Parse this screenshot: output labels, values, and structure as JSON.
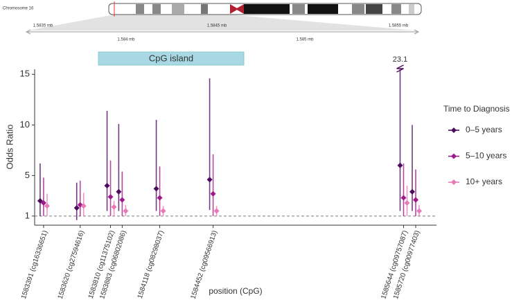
{
  "chart_data": {
    "type": "errorbar",
    "chromosome_label": "Chromosome 16",
    "genome_ticks_top": [
      "1.5835 mb",
      "1.5845 mb",
      "1.5855 mb"
    ],
    "genome_ticks_bottom": [
      "1.584 mb",
      "1.585 mb"
    ],
    "annotation": "CpG island",
    "xlabel": "position (CpG)",
    "ylabel": "Odds Ratio",
    "legend_title": "Time to Diagnosis",
    "xlim": [
      1583335,
      1585850
    ],
    "xticks": [
      {
        "value": 1583391,
        "label": "1583391 (cg16336651)"
      },
      {
        "value": 1583620,
        "label": "1583620 (cg27594616)"
      },
      {
        "value": 1583810,
        "label": "1583810 (cg11375102)"
      },
      {
        "value": 1583883,
        "label": "1583883 (cg06802086)"
      },
      {
        "value": 1584118,
        "label": "1584118 (cg08298037)"
      },
      {
        "value": 1584452,
        "label": "1584452 (cg09566913)"
      },
      {
        "value": 1585644,
        "label": "1585644 (cg09757087)"
      },
      {
        "value": 1585720,
        "label": "1585720 (cg00977403)"
      }
    ],
    "x": [
      1583391,
      1583620,
      1583810,
      1583883,
      1584118,
      1584452,
      1585644,
      1585720
    ],
    "ylim": [
      0.1,
      15.5
    ],
    "yticks": [
      1,
      5,
      10,
      15
    ],
    "hline": 1,
    "series": [
      {
        "name": "0–5 years",
        "color": "#4b0c5e",
        "values": [
          2.5,
          1.8,
          4.0,
          3.4,
          3.7,
          4.6,
          6.0,
          3.4
        ],
        "lower": [
          1.0,
          0.6,
          1.5,
          1.5,
          1.5,
          1.6,
          1.5,
          1.5
        ],
        "upper": [
          6.2,
          4.3,
          11.4,
          10.1,
          10.5,
          14.6,
          23.1,
          10.0
        ]
      },
      {
        "name": "5–10 years",
        "color": "#a0198a",
        "values": [
          2.3,
          2.1,
          2.9,
          2.6,
          2.8,
          3.2,
          2.8,
          2.6
        ],
        "lower": [
          1.0,
          1.0,
          1.0,
          1.0,
          1.0,
          1.0,
          1.0,
          1.0
        ],
        "upper": [
          4.8,
          4.5,
          6.5,
          5.4,
          5.9,
          7.1,
          6.2,
          5.6
        ]
      },
      {
        "name": "10+ years",
        "color": "#e87ab8",
        "values": [
          2.0,
          2.0,
          1.9,
          1.5,
          1.5,
          1.5,
          2.3,
          1.5
        ],
        "lower": [
          1.0,
          1.0,
          1.0,
          1.0,
          1.0,
          1.0,
          1.0,
          1.0
        ],
        "upper": [
          3.2,
          3.3,
          2.5,
          2.1,
          2.0,
          2.0,
          4.0,
          2.1
        ]
      }
    ]
  }
}
